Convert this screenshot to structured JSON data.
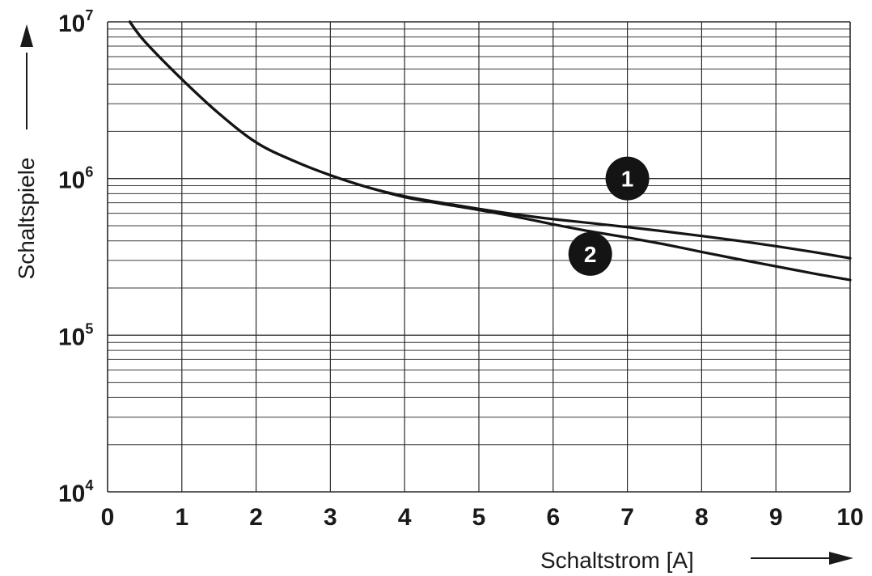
{
  "chart_data": {
    "type": "line",
    "xlabel": "Schaltstrom [A]",
    "ylabel": "Schaltspiele",
    "xlim": [
      0,
      10
    ],
    "ylim": [
      10000,
      10000000
    ],
    "yscale": "log",
    "grid": true,
    "x_ticks": [
      "0",
      "1",
      "2",
      "3",
      "4",
      "5",
      "6",
      "7",
      "8",
      "9",
      "10"
    ],
    "y_ticks": [
      {
        "base": "10",
        "exp": "4"
      },
      {
        "base": "10",
        "exp": "5"
      },
      {
        "base": "10",
        "exp": "6"
      },
      {
        "base": "10",
        "exp": "7"
      }
    ],
    "series": [
      {
        "marker": "1",
        "x": [
          0.3,
          0.5,
          1.0,
          1.5,
          2.0,
          2.5,
          3.0,
          3.5,
          4.0,
          4.5,
          5.0,
          5.5,
          6.0,
          6.5,
          7.0,
          7.5,
          8.0,
          8.5,
          9.0,
          9.5,
          10.0
        ],
        "y": [
          10000000,
          7500000,
          4300000,
          2600000,
          1700000,
          1300000,
          1050000,
          880000,
          770000,
          700000,
          640000,
          590000,
          550000,
          520000,
          490000,
          460000,
          430000,
          400000,
          370000,
          340000,
          310000
        ]
      },
      {
        "marker": "2",
        "x": [
          0.3,
          0.5,
          1.0,
          1.5,
          2.0,
          2.5,
          3.0,
          3.5,
          4.0,
          4.5,
          5.0,
          5.5,
          6.0,
          6.5,
          7.0,
          7.5,
          8.0,
          8.5,
          9.0,
          9.5,
          10.0
        ],
        "y": [
          10000000,
          7500000,
          4300000,
          2600000,
          1700000,
          1300000,
          1050000,
          880000,
          760000,
          690000,
          630000,
          570000,
          510000,
          460000,
          420000,
          380000,
          340000,
          305000,
          275000,
          248000,
          225000
        ]
      }
    ],
    "markers": [
      {
        "label": "1",
        "x": 7.0,
        "y": 1000000
      },
      {
        "label": "2",
        "x": 6.5,
        "y": 330000
      }
    ]
  }
}
